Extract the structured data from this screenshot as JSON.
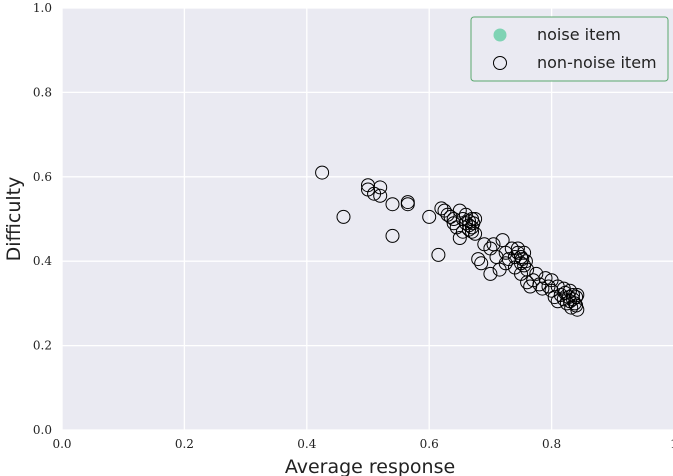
{
  "chart_data": {
    "type": "scatter",
    "title": "",
    "xlabel": "Average response",
    "ylabel": "Difficulty",
    "xlim": [
      0.0,
      1.0
    ],
    "ylim": [
      0.0,
      1.0
    ],
    "xticks": [
      "0.0",
      "0.2",
      "0.4",
      "0.6",
      "0.8",
      "1"
    ],
    "yticks": [
      "0.0",
      "0.2",
      "0.4",
      "0.6",
      "0.8",
      "1.0"
    ],
    "grid": true,
    "legend_position": "top-right",
    "colors": {
      "plot_bg": "#eaeaf2",
      "grid": "#ffffff",
      "noise": "#7fd3b4",
      "legend_border": "#5aa86e",
      "marker_edge": "#000000"
    },
    "series": [
      {
        "name": "noise item",
        "style": "filled",
        "points": []
      },
      {
        "name": "non-noise item",
        "style": "hollow",
        "points": [
          [
            0.425,
            0.61
          ],
          [
            0.46,
            0.505
          ],
          [
            0.5,
            0.58
          ],
          [
            0.5,
            0.57
          ],
          [
            0.51,
            0.56
          ],
          [
            0.52,
            0.575
          ],
          [
            0.52,
            0.555
          ],
          [
            0.54,
            0.535
          ],
          [
            0.54,
            0.46
          ],
          [
            0.565,
            0.535
          ],
          [
            0.565,
            0.54
          ],
          [
            0.6,
            0.505
          ],
          [
            0.615,
            0.415
          ],
          [
            0.62,
            0.525
          ],
          [
            0.625,
            0.52
          ],
          [
            0.63,
            0.51
          ],
          [
            0.635,
            0.505
          ],
          [
            0.64,
            0.5
          ],
          [
            0.64,
            0.49
          ],
          [
            0.645,
            0.48
          ],
          [
            0.65,
            0.52
          ],
          [
            0.65,
            0.455
          ],
          [
            0.655,
            0.5
          ],
          [
            0.655,
            0.47
          ],
          [
            0.66,
            0.49
          ],
          [
            0.66,
            0.51
          ],
          [
            0.665,
            0.485
          ],
          [
            0.665,
            0.495
          ],
          [
            0.665,
            0.475
          ],
          [
            0.67,
            0.5
          ],
          [
            0.67,
            0.48
          ],
          [
            0.67,
            0.47
          ],
          [
            0.672,
            0.49
          ],
          [
            0.675,
            0.465
          ],
          [
            0.675,
            0.5
          ],
          [
            0.68,
            0.405
          ],
          [
            0.685,
            0.395
          ],
          [
            0.69,
            0.44
          ],
          [
            0.7,
            0.37
          ],
          [
            0.7,
            0.43
          ],
          [
            0.705,
            0.44
          ],
          [
            0.71,
            0.41
          ],
          [
            0.715,
            0.38
          ],
          [
            0.72,
            0.45
          ],
          [
            0.725,
            0.42
          ],
          [
            0.725,
            0.395
          ],
          [
            0.73,
            0.405
          ],
          [
            0.735,
            0.43
          ],
          [
            0.74,
            0.41
          ],
          [
            0.74,
            0.385
          ],
          [
            0.745,
            0.42
          ],
          [
            0.745,
            0.43
          ],
          [
            0.75,
            0.41
          ],
          [
            0.75,
            0.395
          ],
          [
            0.75,
            0.37
          ],
          [
            0.752,
            0.405
          ],
          [
            0.755,
            0.39
          ],
          [
            0.755,
            0.42
          ],
          [
            0.758,
            0.4
          ],
          [
            0.76,
            0.38
          ],
          [
            0.76,
            0.35
          ],
          [
            0.765,
            0.34
          ],
          [
            0.77,
            0.355
          ],
          [
            0.775,
            0.37
          ],
          [
            0.78,
            0.345
          ],
          [
            0.785,
            0.335
          ],
          [
            0.79,
            0.36
          ],
          [
            0.795,
            0.34
          ],
          [
            0.8,
            0.355
          ],
          [
            0.8,
            0.33
          ],
          [
            0.805,
            0.315
          ],
          [
            0.81,
            0.34
          ],
          [
            0.81,
            0.305
          ],
          [
            0.815,
            0.32
          ],
          [
            0.82,
            0.335
          ],
          [
            0.82,
            0.31
          ],
          [
            0.822,
            0.325
          ],
          [
            0.825,
            0.3
          ],
          [
            0.828,
            0.315
          ],
          [
            0.83,
            0.33
          ],
          [
            0.83,
            0.305
          ],
          [
            0.832,
            0.29
          ],
          [
            0.835,
            0.32
          ],
          [
            0.835,
            0.31
          ],
          [
            0.838,
            0.3
          ],
          [
            0.84,
            0.315
          ],
          [
            0.84,
            0.295
          ],
          [
            0.842,
            0.32
          ],
          [
            0.842,
            0.285
          ]
        ]
      }
    ]
  }
}
